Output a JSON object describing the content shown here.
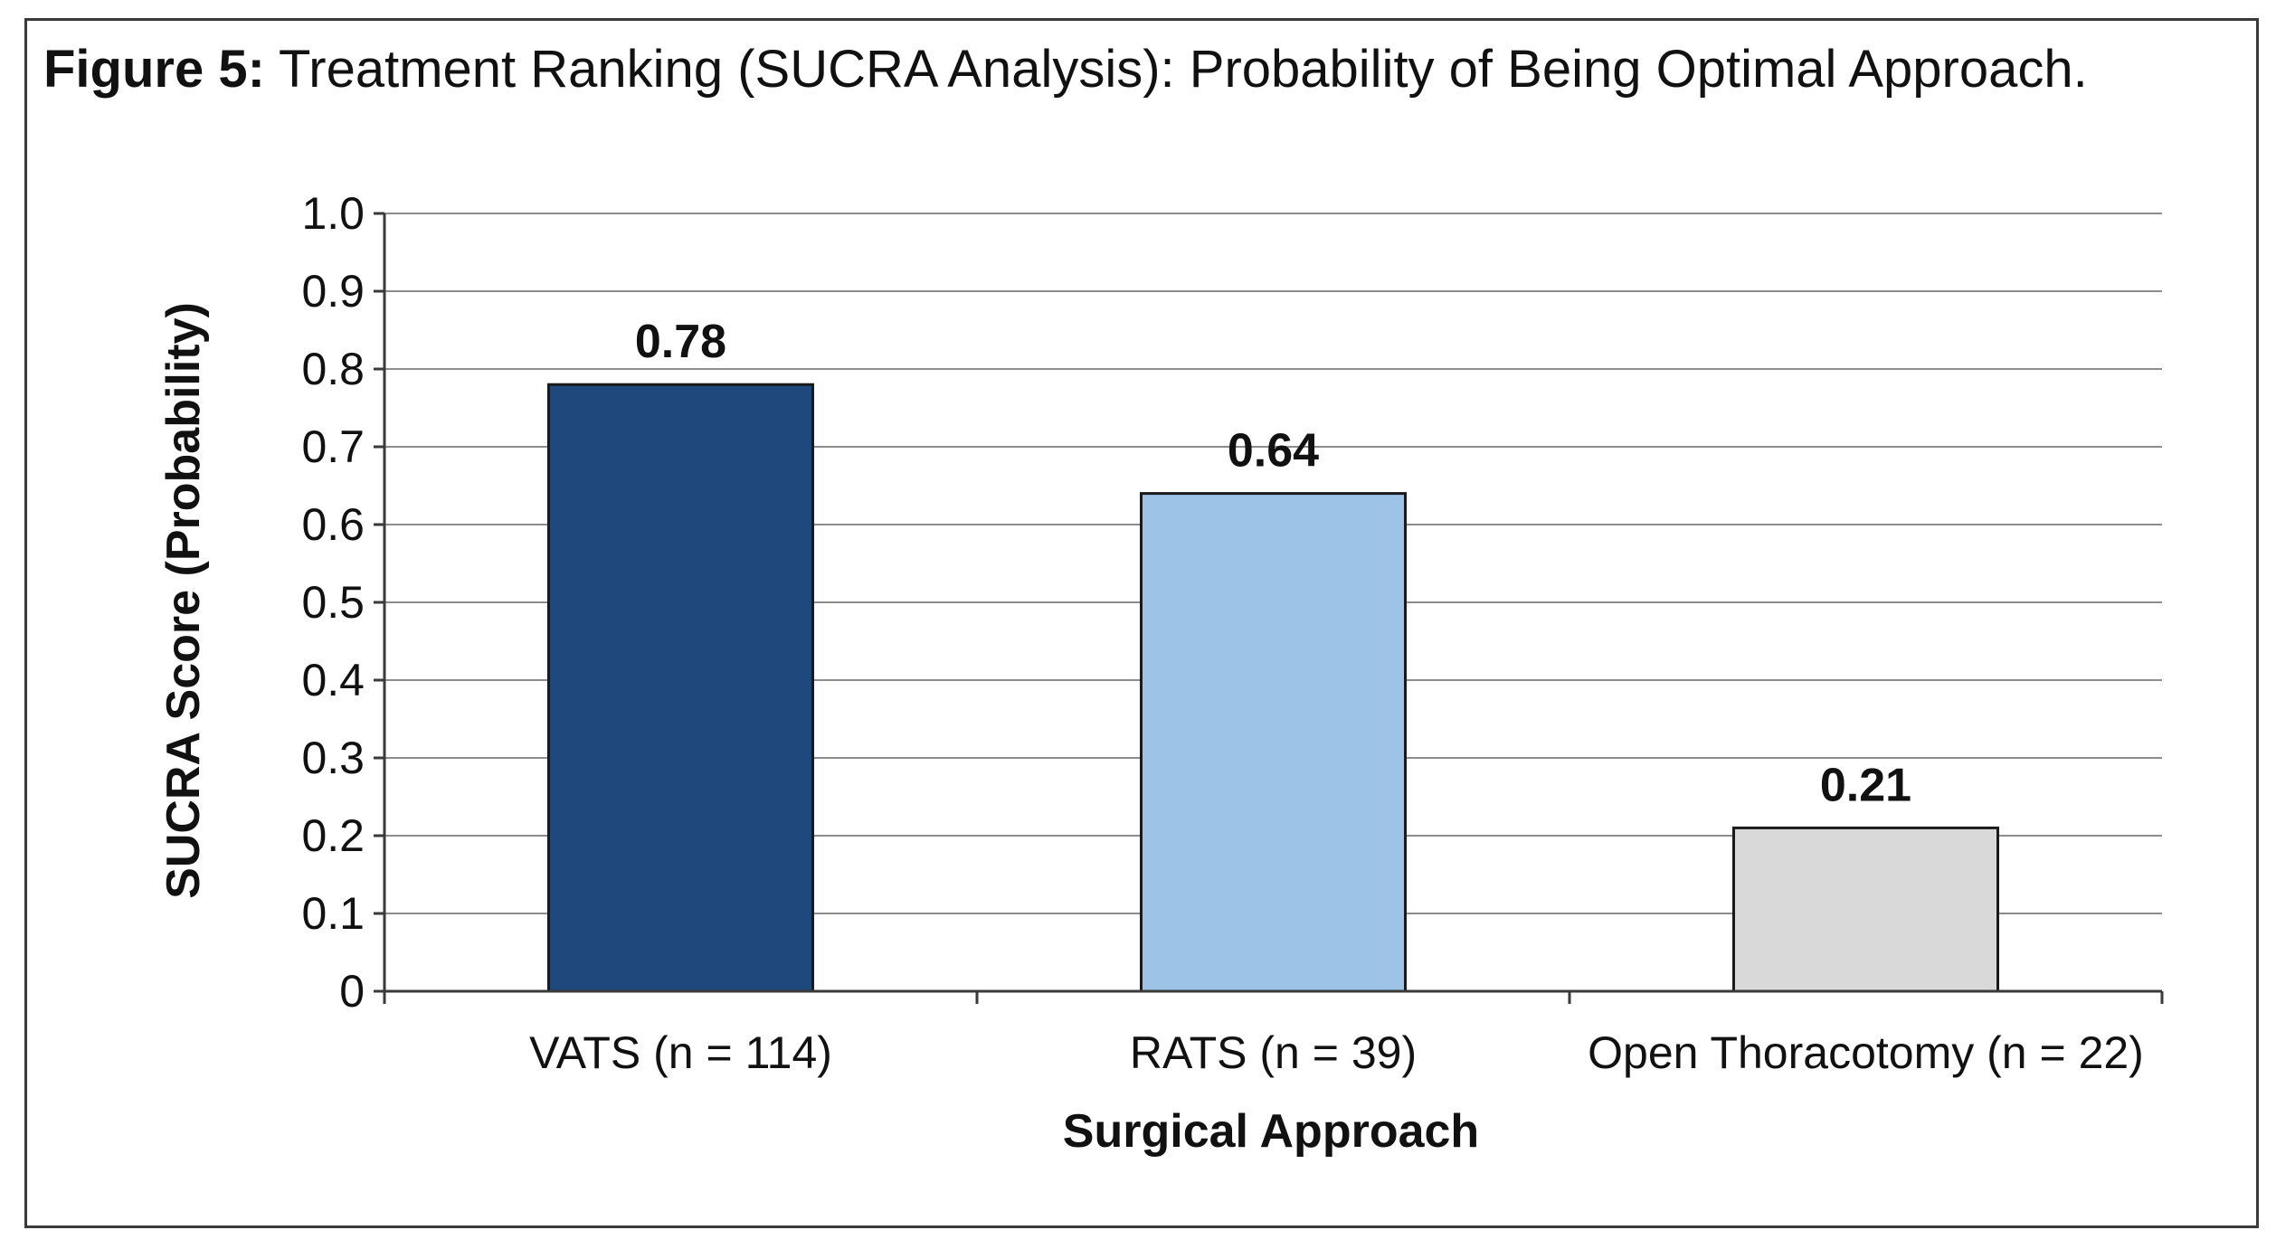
{
  "figure": {
    "label": "Figure 5:",
    "title": "Treatment Ranking (SUCRA Analysis): Probability of Being Optimal Approach."
  },
  "chart_data": {
    "type": "bar",
    "categories": [
      "VATS (n = 114)",
      "RATS (n = 39)",
      "Open Thoracotomy (n = 22)"
    ],
    "values": [
      0.78,
      0.64,
      0.21
    ],
    "data_labels": [
      "0.78",
      "0.64",
      "0.21"
    ],
    "bar_colors": [
      "#1f497d",
      "#9dc3e6",
      "#d9d9d9"
    ],
    "xlabel": "Surgical Approach",
    "ylabel": "SUCRA Score (Probability)",
    "ylim": [
      0,
      1.0
    ],
    "yticks": [
      "0",
      "0.1",
      "0.2",
      "0.3",
      "0.4",
      "0.5",
      "0.6",
      "0.7",
      "0.8",
      "0.9",
      "1.0"
    ],
    "grid": true,
    "legend": "none"
  }
}
